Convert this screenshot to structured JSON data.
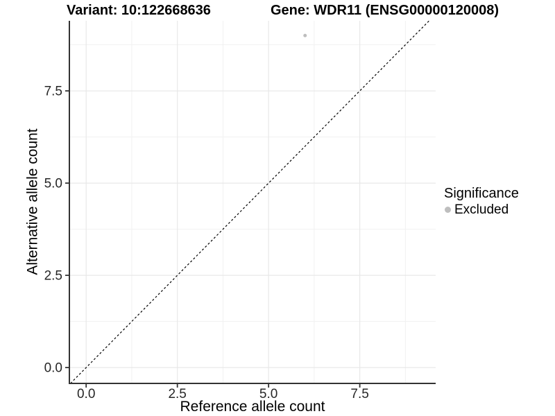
{
  "figure": {
    "title_left": "Variant: 10:122668636",
    "title_right": "Gene: WDR11 (ENSG00000120008)"
  },
  "chart_data": {
    "type": "scatter",
    "title": "Variant: 10:122668636 — Gene: WDR11 (ENSG00000120008)",
    "xlabel": "Reference allele count",
    "ylabel": "Alternative allele count",
    "xlim": [
      -0.46,
      9.58
    ],
    "ylim": [
      -0.43,
      9.4
    ],
    "x_ticks": [
      0,
      2.5,
      5,
      7.5
    ],
    "x_tick_labels": [
      "0.0",
      "2.5",
      "5.0",
      "7.5"
    ],
    "y_ticks": [
      0,
      2.5,
      5,
      7.5
    ],
    "y_tick_labels": [
      "0.0",
      "2.5",
      "5.0",
      "7.5"
    ],
    "minor_ticks": [
      1.25,
      3.75,
      6.25,
      8.75
    ],
    "grid": "major+minor",
    "legend_position": "right",
    "points": [
      {
        "x": 6,
        "y": 9,
        "series": "Excluded"
      }
    ],
    "identity_line": {
      "slope": 1,
      "intercept": 0,
      "style": "dashed",
      "color": "#000000"
    },
    "legend": {
      "title": "Significance",
      "items": [
        {
          "label": "Excluded",
          "color": "#bebebe"
        }
      ]
    },
    "colors": {
      "grid_major": "#e8e8e8",
      "grid_minor": "#f1f1f1",
      "axis_line": "#333333",
      "tick_mark": "#333333",
      "tick_text": "#262626",
      "point": "#bebebe"
    }
  }
}
